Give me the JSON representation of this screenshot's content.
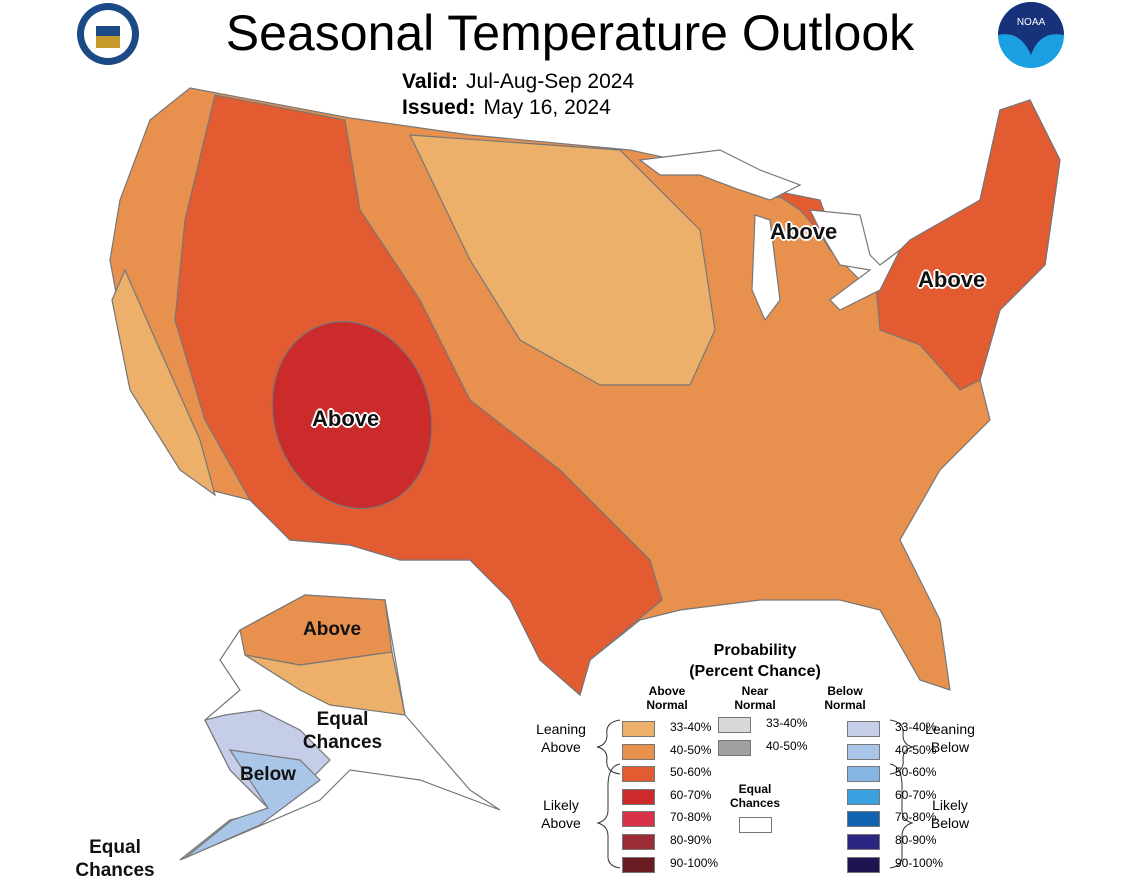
{
  "header": {
    "title": "Seasonal Temperature Outlook",
    "valid_label": "Valid:",
    "valid_value": "Jul-Aug-Sep 2024",
    "issued_label": "Issued:",
    "issued_value": "May 16, 2024",
    "logos": {
      "left": "US Department of Commerce seal",
      "right": "NOAA"
    }
  },
  "map": {
    "labels": {
      "midwest": "Above",
      "northeast": "Above",
      "southwest": "Above",
      "alaska_north": "Above",
      "alaska_center": "Equal Chances",
      "alaska_south": "Below",
      "aleutians": "Equal Chances"
    }
  },
  "legend": {
    "title": "Probability",
    "subtitle": "(Percent Chance)",
    "above_header": "Above Normal",
    "near_header": "Near Normal",
    "below_header": "Below Normal",
    "leaning_above": "Leaning Above",
    "likely_above": "Likely Above",
    "leaning_below": "Leaning Below",
    "likely_below": "Likely Below",
    "equal_chances": "Equal Chances",
    "equal_color": "#ffffff",
    "above": [
      {
        "range": "33-40%",
        "color": "#ecb06b"
      },
      {
        "range": "40-50%",
        "color": "#e8914f"
      },
      {
        "range": "50-60%",
        "color": "#e35c31"
      },
      {
        "range": "60-70%",
        "color": "#cc2b2b"
      },
      {
        "range": "70-80%",
        "color": "#d83249"
      },
      {
        "range": "80-90%",
        "color": "#9b2b34"
      },
      {
        "range": "90-100%",
        "color": "#6b1c22"
      }
    ],
    "near": [
      {
        "range": "33-40%",
        "color": "#d8d8d8"
      },
      {
        "range": "40-50%",
        "color": "#a0a0a0"
      }
    ],
    "below": [
      {
        "range": "33-40%",
        "color": "#c6cde9"
      },
      {
        "range": "40-50%",
        "color": "#a9c5e8"
      },
      {
        "range": "50-60%",
        "color": "#84b5e3"
      },
      {
        "range": "60-70%",
        "color": "#3ba1e0"
      },
      {
        "range": "70-80%",
        "color": "#1162b0"
      },
      {
        "range": "80-90%",
        "color": "#2c2582"
      },
      {
        "range": "90-100%",
        "color": "#1c1552"
      }
    ]
  }
}
